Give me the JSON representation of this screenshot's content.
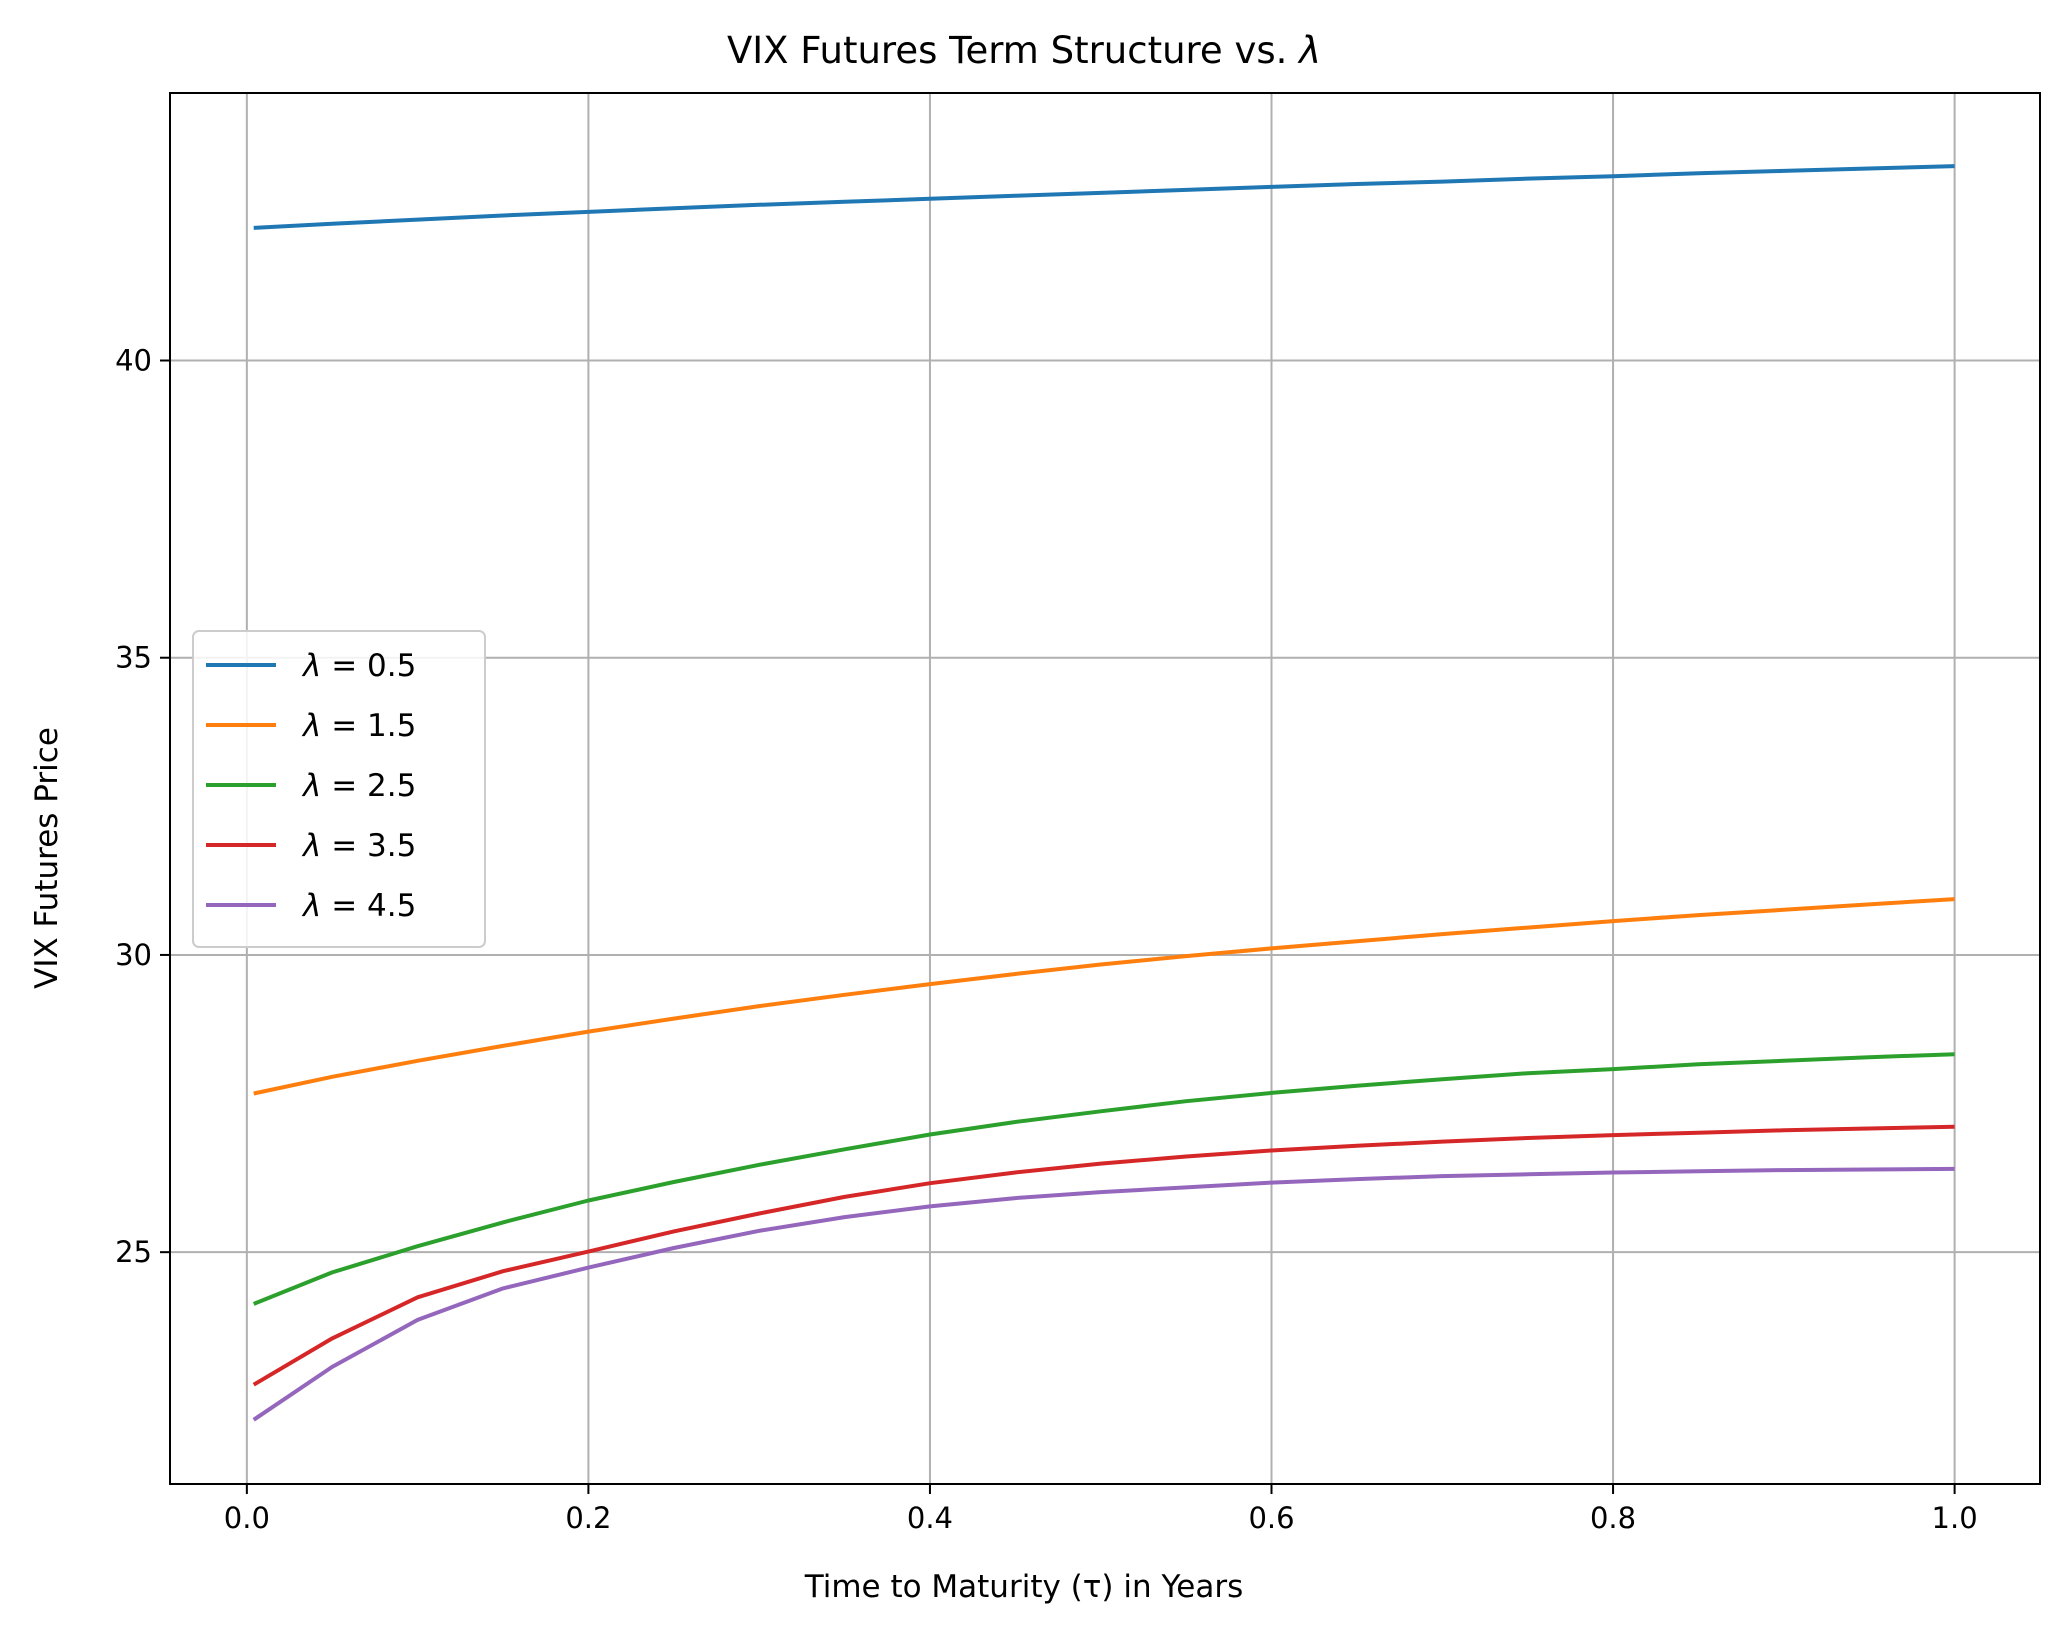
{
  "chart_data": {
    "type": "line",
    "title_main": "VIX Futures Term Structure vs. ",
    "title_symbol": "λ",
    "xlabel": "Time to Maturity (τ) in Years",
    "ylabel": "VIX Futures Price",
    "xlim": [
      -0.045,
      1.05
    ],
    "ylim": [
      21.1,
      44.5
    ],
    "xticks": [
      0.0,
      0.2,
      0.4,
      0.6,
      0.8,
      1.0
    ],
    "xtick_labels": [
      "0.0",
      "0.2",
      "0.4",
      "0.6",
      "0.8",
      "1.0"
    ],
    "yticks": [
      25,
      30,
      35,
      40
    ],
    "ytick_labels": [
      "25",
      "30",
      "35",
      "40"
    ],
    "grid": true,
    "legend_position": "center-left",
    "x": [
      0.004,
      0.05,
      0.1,
      0.15,
      0.2,
      0.25,
      0.3,
      0.35,
      0.4,
      0.45,
      0.5,
      0.55,
      0.6,
      0.65,
      0.7,
      0.75,
      0.8,
      0.85,
      0.9,
      0.95,
      1.0
    ],
    "series": [
      {
        "symbol": "λ",
        "eq": " = ",
        "value": "0.5",
        "color": "#1f77b4",
        "y": [
          42.23,
          42.3,
          42.37,
          42.44,
          42.5,
          42.56,
          42.62,
          42.67,
          42.72,
          42.77,
          42.82,
          42.87,
          42.92,
          42.97,
          43.01,
          43.06,
          43.1,
          43.15,
          43.19,
          43.23,
          43.27
        ]
      },
      {
        "symbol": "λ",
        "eq": " = ",
        "value": "1.5",
        "color": "#ff7f0e",
        "y": [
          27.67,
          27.95,
          28.22,
          28.47,
          28.71,
          28.93,
          29.14,
          29.33,
          29.51,
          29.68,
          29.84,
          29.98,
          30.11,
          30.23,
          30.35,
          30.46,
          30.57,
          30.67,
          30.76,
          30.85,
          30.94
        ]
      },
      {
        "symbol": "λ",
        "eq": " = ",
        "value": "2.5",
        "color": "#2ca02c",
        "y": [
          24.13,
          24.66,
          25.1,
          25.5,
          25.87,
          26.18,
          26.47,
          26.73,
          26.98,
          27.19,
          27.37,
          27.54,
          27.68,
          27.8,
          27.91,
          28.01,
          28.08,
          28.16,
          28.22,
          28.28,
          28.33
        ]
      },
      {
        "symbol": "λ",
        "eq": " = ",
        "value": "3.5",
        "color": "#d62728",
        "y": [
          22.77,
          23.55,
          24.24,
          24.68,
          25.01,
          25.35,
          25.65,
          25.93,
          26.16,
          26.34,
          26.49,
          26.61,
          26.71,
          26.79,
          26.86,
          26.92,
          26.97,
          27.01,
          27.05,
          27.08,
          27.11
        ]
      },
      {
        "symbol": "λ",
        "eq": " = ",
        "value": "4.5",
        "color": "#9467bd",
        "y": [
          22.18,
          23.07,
          23.86,
          24.39,
          24.74,
          25.07,
          25.36,
          25.59,
          25.77,
          25.91,
          26.01,
          26.09,
          26.17,
          26.23,
          26.28,
          26.31,
          26.34,
          26.36,
          26.38,
          26.39,
          26.4
        ]
      }
    ]
  }
}
